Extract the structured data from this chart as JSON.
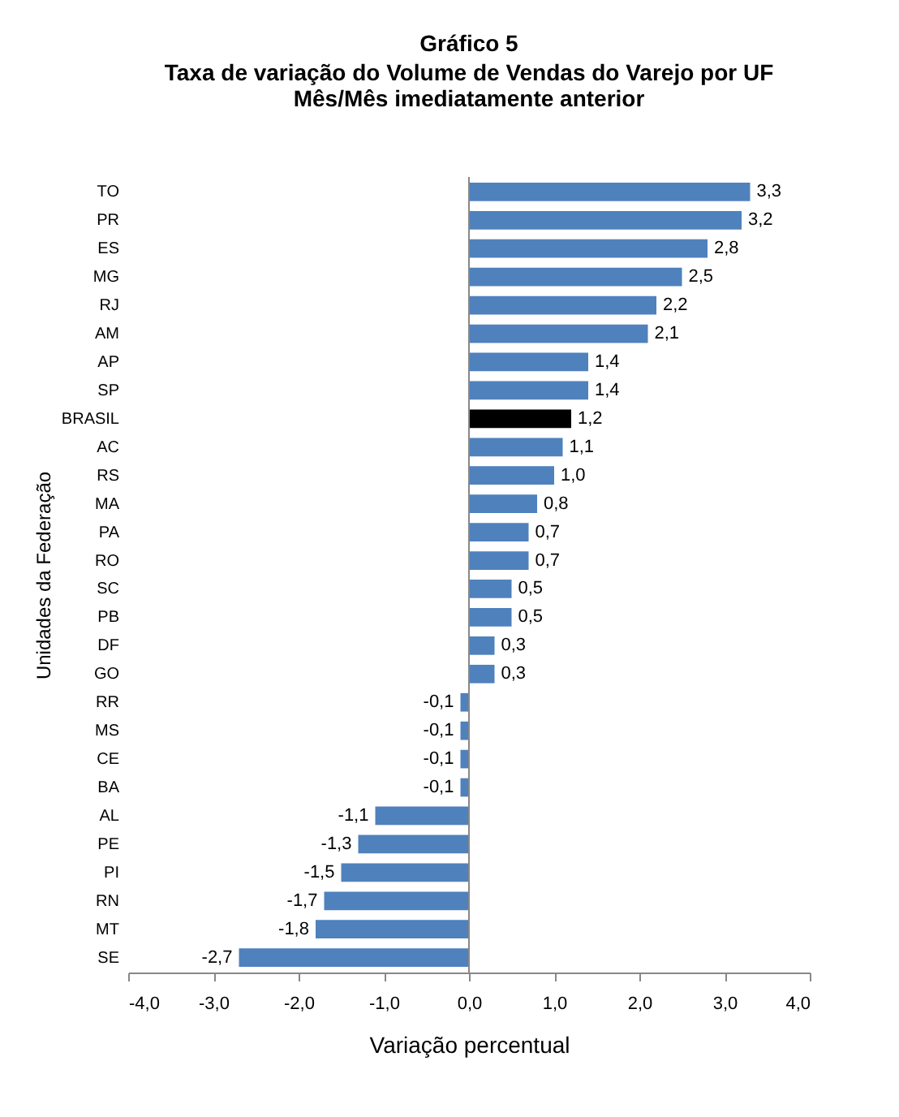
{
  "chart_data": {
    "type": "bar",
    "orientation": "horizontal",
    "title": "Gráfico 5",
    "subtitle": "Taxa de variação do Volume de Vendas do Varejo por UF\nMês/Mês imediatamente anterior",
    "xlabel": "Variação percentual",
    "ylabel": "Unidades da Federação",
    "categories": [
      "TO",
      "PR",
      "ES",
      "MG",
      "RJ",
      "AM",
      "AP",
      "SP",
      "BRASIL",
      "AC",
      "RS",
      "MA",
      "PA",
      "RO",
      "SC",
      "PB",
      "DF",
      "GO",
      "RR",
      "MS",
      "CE",
      "BA",
      "AL",
      "PE",
      "PI",
      "RN",
      "MT",
      "SE"
    ],
    "values": [
      3.3,
      3.2,
      2.8,
      2.5,
      2.2,
      2.1,
      1.4,
      1.4,
      1.2,
      1.1,
      1.0,
      0.8,
      0.7,
      0.7,
      0.5,
      0.5,
      0.3,
      0.3,
      -0.1,
      -0.1,
      -0.1,
      -0.1,
      -1.1,
      -1.3,
      -1.5,
      -1.7,
      -1.8,
      -2.7
    ],
    "value_labels": [
      "3,3",
      "3,2",
      "2,8",
      "2,5",
      "2,2",
      "2,1",
      "1,4",
      "1,4",
      "1,2",
      "1,1",
      "1,0",
      "0,8",
      "0,7",
      "0,7",
      "0,5",
      "0,5",
      "0,3",
      "0,3",
      "-0,1",
      "-0,1",
      "-0,1",
      "-0,1",
      "-1,1",
      "-1,3",
      "-1,5",
      "-1,7",
      "-1,8",
      "-2,7"
    ],
    "colors": [
      "#4f81bd",
      "#4f81bd",
      "#4f81bd",
      "#4f81bd",
      "#4f81bd",
      "#4f81bd",
      "#4f81bd",
      "#4f81bd",
      "#000000",
      "#4f81bd",
      "#4f81bd",
      "#4f81bd",
      "#4f81bd",
      "#4f81bd",
      "#4f81bd",
      "#4f81bd",
      "#4f81bd",
      "#4f81bd",
      "#4f81bd",
      "#4f81bd",
      "#4f81bd",
      "#4f81bd",
      "#4f81bd",
      "#4f81bd",
      "#4f81bd",
      "#4f81bd",
      "#4f81bd",
      "#4f81bd"
    ],
    "xlim": [
      -4,
      4
    ],
    "xticks": [
      {
        "value": -4,
        "label": "-4,0"
      },
      {
        "value": -3,
        "label": "-3,0"
      },
      {
        "value": -2,
        "label": "-2,0"
      },
      {
        "value": -1,
        "label": "-1,0"
      },
      {
        "value": 0,
        "label": "0,0"
      },
      {
        "value": 1,
        "label": "1,0"
      },
      {
        "value": 2,
        "label": "2,0"
      },
      {
        "value": 3,
        "label": "3,0"
      },
      {
        "value": 4,
        "label": "4,0"
      }
    ],
    "grid": false,
    "ref_lines": [
      {
        "axis": "x",
        "value": 0,
        "color": "#888888"
      }
    ]
  }
}
